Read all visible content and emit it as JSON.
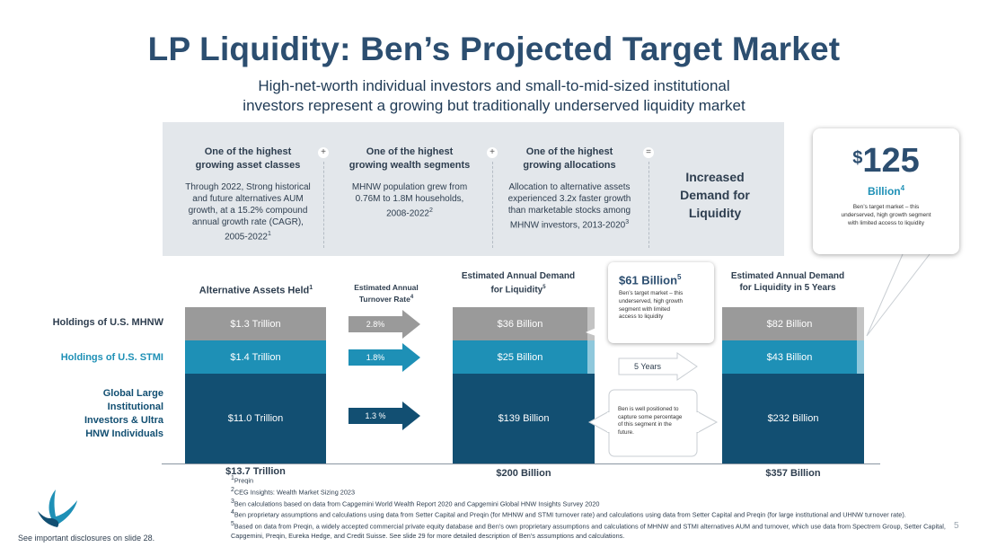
{
  "title": "LP Liquidity: Ben’s Projected Target Market",
  "subtitle_line1": "High-net-worth individual investors and small-to-mid-sized institutional",
  "subtitle_line2": "investors represent a growing but traditionally underserved liquidity market",
  "columns": [
    {
      "heading1": "One of the highest",
      "heading2": "growing asset classes",
      "body": [
        "Through 2022, Strong historical",
        "and future alternatives AUM",
        "growth, at a 15.2% compound",
        "annual growth rate (CAGR),",
        "2005-2022"
      ],
      "sup": "1",
      "operator": "+"
    },
    {
      "heading1": "One of the highest",
      "heading2": "growing wealth segments",
      "body": [
        "MHNW population grew from",
        "0.76M to 1.8M households,",
        "2008-2022"
      ],
      "sup": "2",
      "operator": "+"
    },
    {
      "heading1": "One of the highest",
      "heading2": "growing allocations",
      "body": [
        "Allocation to alternative assets",
        "experienced 3.2x faster growth",
        "than marketable stocks among",
        "MHNW investors, 2013-2020"
      ],
      "sup": "3",
      "operator": "="
    }
  ],
  "increased_demand": [
    "Increased",
    "Demand for",
    "Liquidity"
  ],
  "target_market": {
    "dollar": "$",
    "value": "125",
    "unit": "Billion",
    "sup": "4",
    "desc": [
      "Ben’s target market – this",
      "underserved, high growth segment",
      "with limited access to liquidity"
    ]
  },
  "row_labels": {
    "mhnw": "Holdings of U.S. MHNW",
    "stmi": "Holdings of U.S. STMI",
    "global": [
      "Global Large",
      "Institutional",
      "Investors & Ultra",
      "HNW Individuals"
    ]
  },
  "headers": {
    "alt_assets": "Alternative Assets Held",
    "alt_assets_sup": "1",
    "turnover": [
      "Estimated Annual",
      "Turnover Rate"
    ],
    "turnover_sup": "4",
    "demand": [
      "Estimated Annual Demand",
      "for Liquidity"
    ],
    "demand_sup": "5",
    "demand5": [
      "Estimated Annual Demand",
      "for Liquidity in 5 Years"
    ]
  },
  "bars": {
    "alt": {
      "mhnw": "$1.3 Trillion",
      "stmi": "$1.4 Trillion",
      "global": "$11.0 Trillion",
      "total": "$13.7 Trillion"
    },
    "demand": {
      "mhnw": "$36 Billion",
      "stmi": "$25 Billion",
      "global": "$139 Billion",
      "total": "$200 Billion"
    },
    "demand5": {
      "mhnw": "$82 Billion",
      "stmi": "$43 Billion",
      "global": "$232 Billion",
      "total": "$357 Billion"
    }
  },
  "turnover_rates": {
    "mhnw": "2.8%",
    "stmi": "1.8%",
    "global": "1.3 %"
  },
  "five_years": "5 Years",
  "callout61": {
    "title": "$61 Billion",
    "sup": "5",
    "desc": [
      "Ben’s target market – this",
      "underserved, high growth",
      "segment with limited",
      "access to liquidity"
    ]
  },
  "callout_global": [
    "Ben is well positioned to",
    "capture some percentage",
    "of this segment in the",
    "future."
  ],
  "footnotes": [
    {
      "sup": "1",
      "text": "Preqin"
    },
    {
      "sup": "2",
      "text": "CEG Insights: Wealth Market Sizing 2023"
    },
    {
      "sup": "3",
      "text": "Ben calculations based on data from Capgemini World Wealth Report 2020 and Capgemini Global HNW Insights Survey 2020"
    },
    {
      "sup": "4",
      "text": "Ben proprietary assumptions and calculations using data from Setter Capital and Preqin (for MHNW and STMI turnover rate) and calculations using data from Setter Capital and Preqin (for large institutional and UHNW turnover rate)."
    },
    {
      "sup": "5",
      "text": "Based on data from Preqin, a widely accepted commercial private equity database and Ben’s own proprietary assumptions and calculations of MHNW and STMI alternatives AUM and turnover, which use data from Spectrem Group, Setter Capital,  Capgemini, Preqin, Eureka Hedge, and Credit Suisse. See slide 29 for more detailed description of Ben’s assumptions and calculations."
    }
  ],
  "disclosure": "See important disclosures on slide 28.",
  "page_number": "5",
  "colors": {
    "title": "#2c4e70",
    "gray": "#9a9a9a",
    "teal": "#1e90b6",
    "navy": "#124f72",
    "panel": "#e3e7eb"
  }
}
